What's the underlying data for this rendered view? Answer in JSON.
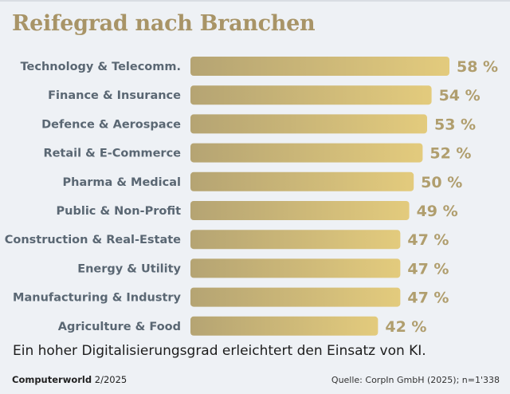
{
  "chart_data": {
    "type": "bar",
    "orientation": "horizontal",
    "title": "Reifegrad nach Branchen",
    "categories": [
      "Technology & Telecomm.",
      "Finance & Insurance",
      "Defence & Aerospace",
      "Retail & E-Commerce",
      "Pharma & Medical",
      "Public & Non-Profit",
      "Construction & Real-Estate",
      "Energy & Utility",
      "Manufacturing & Industry",
      "Agriculture & Food"
    ],
    "values": [
      58,
      54,
      53,
      52,
      50,
      49,
      47,
      47,
      47,
      42
    ],
    "value_suffix": " %",
    "xlabel": "",
    "ylabel": "",
    "xlim": [
      0,
      100
    ],
    "grid": false,
    "legend": "none",
    "bar_gradient": [
      "#b5a473",
      "#e3cb7d"
    ],
    "label_color": "#5a6773",
    "value_color": "#b09e6e"
  },
  "caption": "Ein hoher Digitalisierungsgrad erleichtert den Einsatz von KI.",
  "footer": {
    "publication": "Computerworld",
    "issue": "2/2025",
    "source": "Quelle: CorpIn GmbH (2025); n=1'338"
  }
}
